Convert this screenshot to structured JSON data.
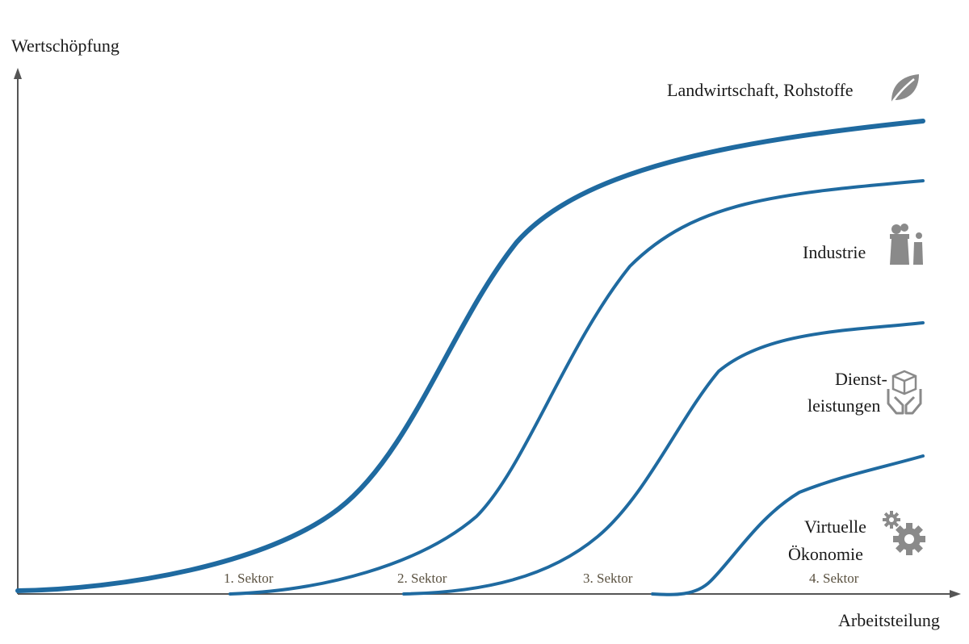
{
  "axes": {
    "y_label": "Wertschöpfung",
    "x_label": "Arbeitsteilung"
  },
  "curves": [
    {
      "label": "Landwirtschaft, Rohstoffe",
      "icon": "leaf-icon"
    },
    {
      "label": "Industrie",
      "icon": "factory-icon"
    },
    {
      "label_line1": "Dienst-",
      "label_line2": "leistungen",
      "icon": "hands-box-icon"
    },
    {
      "label_line1": "Virtuelle",
      "label_line2": "Ökonomie",
      "icon": "gears-icon"
    }
  ],
  "sectors": [
    "1. Sektor",
    "2. Sektor",
    "3. Sektor",
    "4. Sektor"
  ],
  "colors": {
    "curve": "#1f6aa0",
    "axis": "#555555",
    "icon": "#8a8a8a"
  }
}
